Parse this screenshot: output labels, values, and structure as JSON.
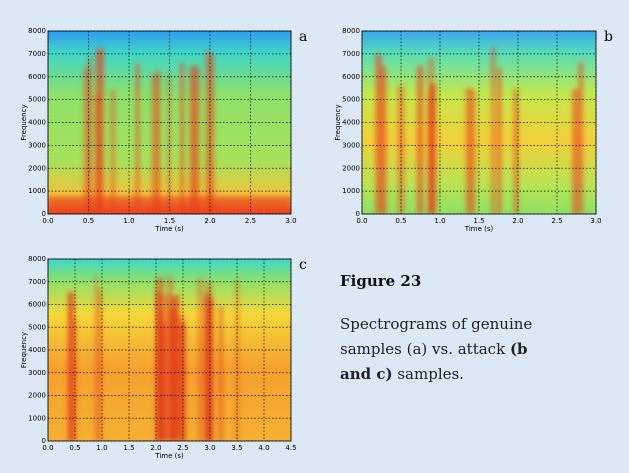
{
  "chart_data": [
    {
      "type": "spectrogram",
      "panel": "a",
      "xlabel": "Time (s)",
      "ylabel": "Frequency",
      "xlim": [
        0,
        3
      ],
      "ylim": [
        0,
        8000
      ],
      "xticks": [
        {
          "value": 0,
          "label": "0.0"
        },
        0.5,
        {
          "value": 1,
          "label": "1.0"
        },
        1.5,
        {
          "value": 2,
          "label": "2.0"
        },
        2.5,
        {
          "value": 3,
          "label": "3.0"
        }
      ],
      "yticks": [
        0,
        1000,
        2000,
        3000,
        4000,
        5000,
        6000,
        7000,
        8000
      ],
      "grid": true
    },
    {
      "type": "spectrogram",
      "panel": "b",
      "xlabel": "Time (s)",
      "ylabel": "Frequency",
      "xlim": [
        0,
        3
      ],
      "ylim": [
        0,
        8000
      ],
      "xticks": [
        {
          "value": 0,
          "label": "0.0"
        },
        0.5,
        {
          "value": 1,
          "label": "1.0"
        },
        1.5,
        {
          "value": 2,
          "label": "2.0"
        },
        2.5,
        {
          "value": 3,
          "label": "3.0"
        }
      ],
      "yticks": [
        0,
        1000,
        2000,
        3000,
        4000,
        5000,
        6000,
        7000,
        8000
      ],
      "grid": true
    },
    {
      "type": "spectrogram",
      "panel": "c",
      "xlabel": "Time (s)",
      "ylabel": "Frequency",
      "xlim": [
        0,
        4.5
      ],
      "ylim": [
        0,
        8000
      ],
      "xticks": [
        {
          "value": 0,
          "label": "0.0"
        },
        0.5,
        {
          "value": 1,
          "label": "1.0"
        },
        1.5,
        {
          "value": 2,
          "label": "2.0"
        },
        2.5,
        {
          "value": 3,
          "label": "3.0"
        },
        3.5,
        {
          "value": 4,
          "label": "4.0"
        },
        4.5
      ],
      "yticks": [
        0,
        1000,
        2000,
        3000,
        4000,
        5000,
        6000,
        7000,
        8000
      ],
      "grid": true
    }
  ],
  "caption": {
    "title": "Figure 23",
    "text": [
      {
        "text": "Spectrograms of genuine samples (a) vs. attack ",
        "bold": false
      },
      {
        "text": "(b and c)",
        "bold": true
      },
      {
        "text": " samples.",
        "bold": false
      }
    ]
  }
}
